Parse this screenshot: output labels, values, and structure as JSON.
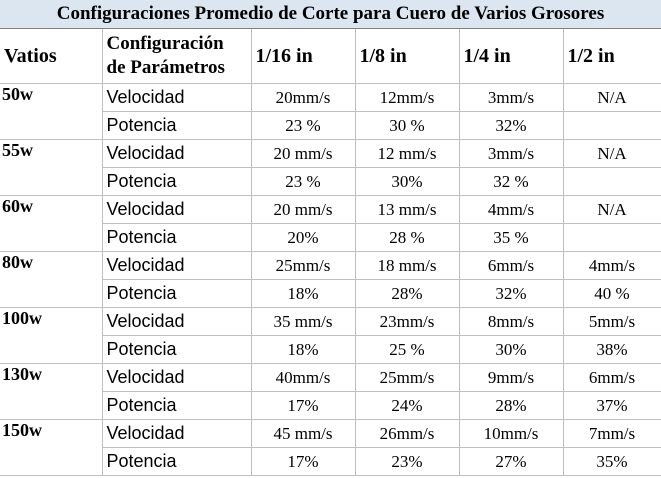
{
  "title": "Configuraciones Promedio de Corte para Cuero de Varios Grosores",
  "headers": {
    "watts": "Vatios",
    "param_line1": "Configuración",
    "param_line2": "de Parámetros",
    "t1": "1/16 in",
    "t2": "1/8 in",
    "t3": "1/4 in",
    "t4": "1/2 in"
  },
  "rows": [
    {
      "watt": "50w",
      "speed": {
        "label": "Velocidad",
        "v": [
          "20mm/s",
          "12mm/s",
          "3mm/s",
          "N/A"
        ]
      },
      "power": {
        "label": "Potencia",
        "v": [
          "23 %",
          "30 %",
          "32%",
          ""
        ]
      }
    },
    {
      "watt": "55w",
      "speed": {
        "label": "Velocidad",
        "v": [
          "20 mm/s",
          "12 mm/s",
          "3mm/s",
          "N/A"
        ]
      },
      "power": {
        "label": "Potencia",
        "v": [
          "23 %",
          "30%",
          "32 %",
          ""
        ]
      }
    },
    {
      "watt": "60w",
      "speed": {
        "label": "Velocidad",
        "v": [
          "20 mm/s",
          "13 mm/s",
          "4mm/s",
          "N/A"
        ]
      },
      "power": {
        "label": "Potencia",
        "v": [
          "20%",
          "28 %",
          "35 %",
          ""
        ]
      }
    },
    {
      "watt": "80w",
      "speed": {
        "label": "Velocidad",
        "v": [
          "25mm/s",
          "18 mm/s",
          "6mm/s",
          "4mm/s"
        ]
      },
      "power": {
        "label": "Potencia",
        "v": [
          "18%",
          "28%",
          "32%",
          "40 %"
        ]
      }
    },
    {
      "watt": "100w",
      "speed": {
        "label": "Velocidad",
        "v": [
          "35 mm/s",
          "23mm/s",
          "8mm/s",
          "5mm/s"
        ]
      },
      "power": {
        "label": "Potencia",
        "v": [
          "18%",
          "25 %",
          "30%",
          "38%"
        ]
      }
    },
    {
      "watt": "130w",
      "speed": {
        "label": "Velocidad",
        "v": [
          "40mm/s",
          "25mm/s",
          "9mm/s",
          "6mm/s"
        ]
      },
      "power": {
        "label": "Potencia",
        "v": [
          "17%",
          "24%",
          "28%",
          "37%"
        ]
      }
    },
    {
      "watt": "150w",
      "speed": {
        "label": "Velocidad",
        "v": [
          "45 mm/s",
          "26mm/s",
          "10mm/s",
          "7mm/s"
        ]
      },
      "power": {
        "label": "Potencia",
        "v": [
          "17%",
          "23%",
          "27%",
          "35%"
        ]
      }
    }
  ]
}
